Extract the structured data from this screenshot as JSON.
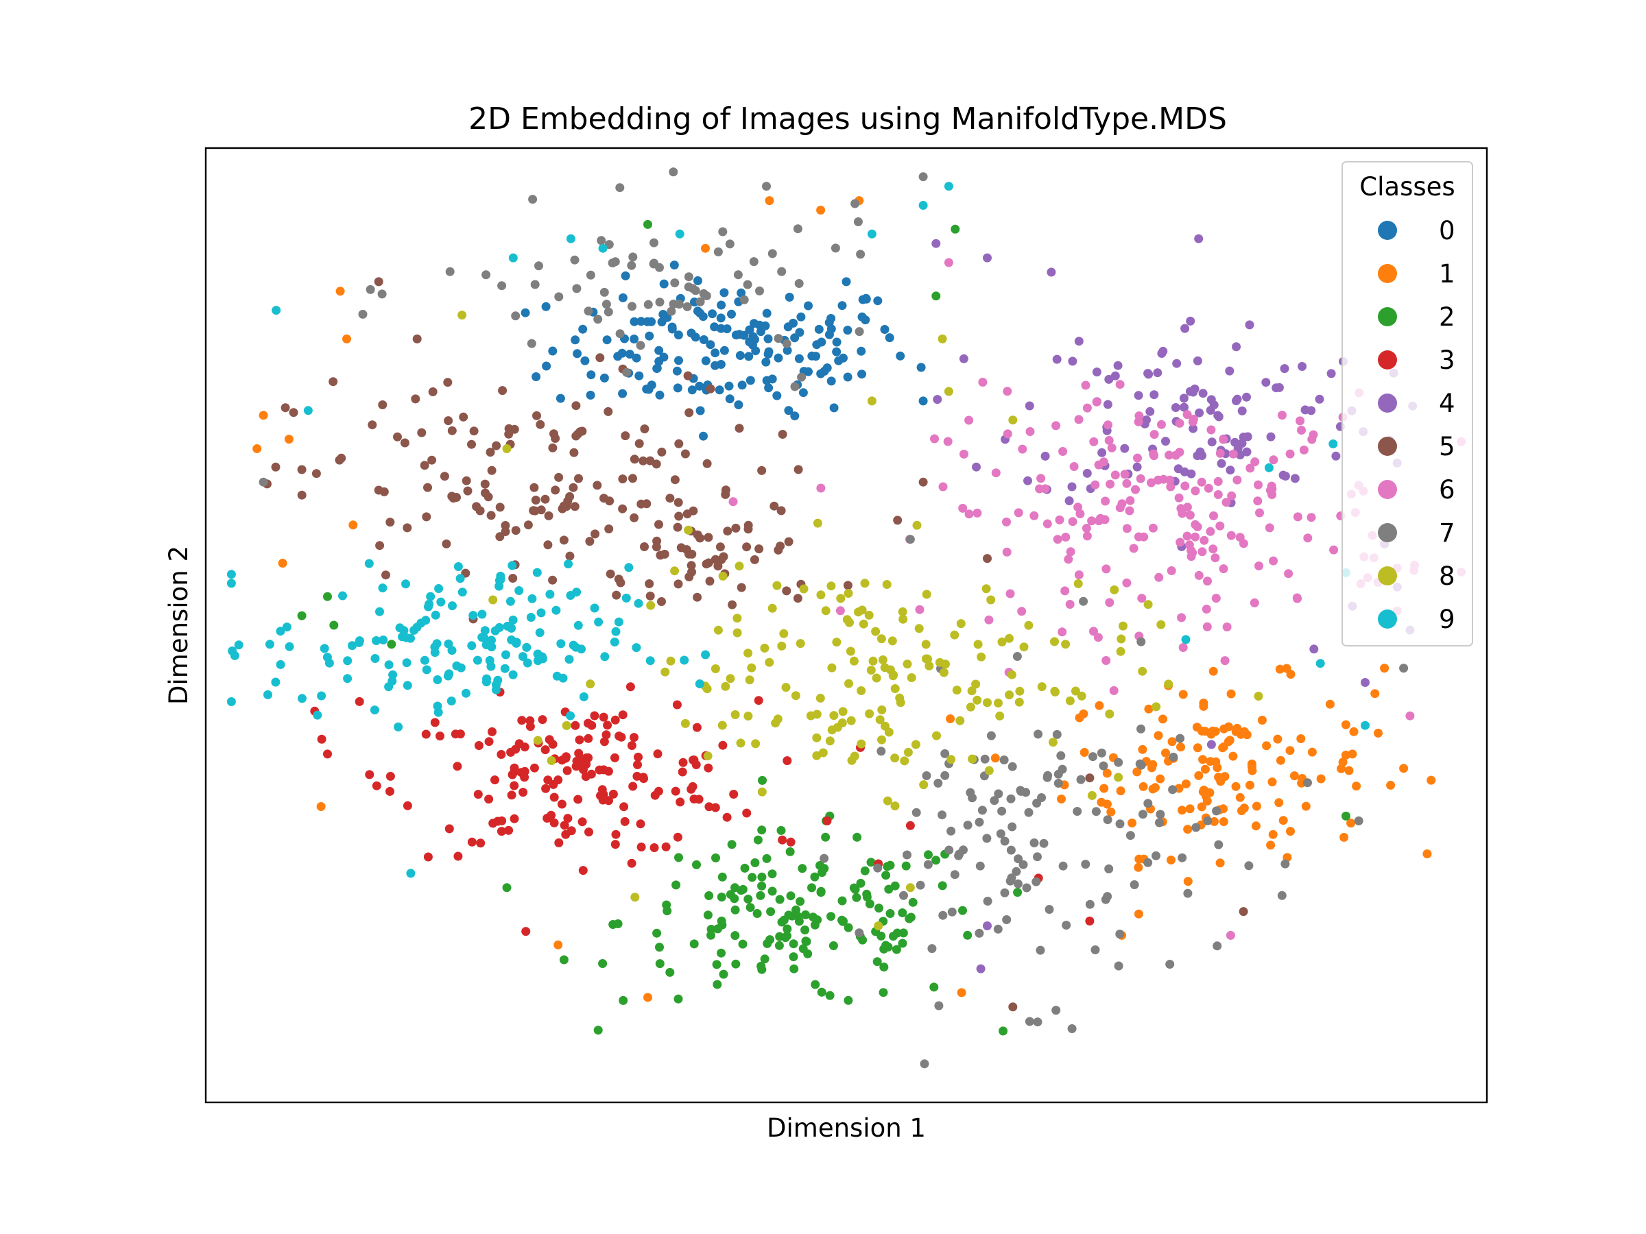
{
  "chart_data": {
    "type": "scatter",
    "title": "2D Embedding of Images using ManifoldType.MDS",
    "xlabel": "Dimension 1",
    "ylabel": "Dimension 2",
    "xlim": [
      -1.0,
      1.0
    ],
    "ylim": [
      -1.0,
      1.0
    ],
    "x_ticks": "none",
    "y_ticks": "none",
    "grid": false,
    "legend": {
      "title": "Classes",
      "placement": "top-right",
      "entries": [
        "0",
        "1",
        "2",
        "3",
        "4",
        "5",
        "6",
        "7",
        "8",
        "9"
      ]
    },
    "series": [
      {
        "name": "0",
        "color": "#1f77b4",
        "clusters": [
          {
            "cx": -0.18,
            "cy": 0.58,
            "sx": 0.14,
            "sy": 0.07,
            "n": 160
          }
        ],
        "points": [
          [
            -0.09,
            0.45
          ],
          [
            0.12,
            0.47
          ],
          [
            0.0,
            0.72
          ],
          [
            -0.35,
            0.57
          ],
          [
            0.06,
            0.62
          ]
        ]
      },
      {
        "name": "1",
        "color": "#ff7f0e",
        "clusters": [
          {
            "cx": 0.58,
            "cy": -0.3,
            "sx": 0.12,
            "sy": 0.09,
            "n": 140
          }
        ],
        "points": [
          [
            -0.91,
            0.44
          ],
          [
            -0.87,
            0.39
          ],
          [
            -0.92,
            0.37
          ],
          [
            -0.79,
            0.7
          ],
          [
            -0.78,
            0.6
          ],
          [
            -0.88,
            0.13
          ],
          [
            -0.82,
            -0.38
          ],
          [
            -0.77,
            0.21
          ],
          [
            -0.45,
            -0.67
          ],
          [
            -0.31,
            -0.78
          ],
          [
            -0.22,
            0.79
          ],
          [
            -0.12,
            0.89
          ],
          [
            -0.04,
            0.87
          ],
          [
            0.02,
            0.89
          ],
          [
            0.18,
            -0.77
          ],
          [
            0.43,
            -0.65
          ],
          [
            0.87,
            -0.3
          ],
          [
            0.79,
            -0.27
          ],
          [
            0.84,
            -0.09
          ]
        ]
      },
      {
        "name": "2",
        "color": "#2ca02c",
        "clusters": [
          {
            "cx": -0.07,
            "cy": -0.62,
            "sx": 0.14,
            "sy": 0.09,
            "n": 160
          }
        ],
        "points": [
          [
            -0.81,
            0.06
          ],
          [
            -0.8,
            0.0
          ],
          [
            -0.85,
            0.02
          ],
          [
            -0.71,
            -0.04
          ],
          [
            -0.53,
            -0.55
          ],
          [
            -0.31,
            0.84
          ],
          [
            0.17,
            0.83
          ],
          [
            0.14,
            0.69
          ],
          [
            0.78,
            -0.4
          ]
        ]
      },
      {
        "name": "3",
        "color": "#d62728",
        "clusters": [
          {
            "cx": -0.42,
            "cy": -0.32,
            "sx": 0.14,
            "sy": 0.08,
            "n": 160
          }
        ],
        "points": [
          [
            -0.83,
            -0.18
          ],
          [
            -0.81,
            -0.27
          ],
          [
            -0.76,
            -0.16
          ],
          [
            0.05,
            -0.5
          ],
          [
            0.1,
            -0.42
          ],
          [
            0.3,
            -0.53
          ],
          [
            0.38,
            -0.62
          ],
          [
            -0.1,
            -0.45
          ],
          [
            -0.03,
            -0.41
          ]
        ]
      },
      {
        "name": "4",
        "color": "#9467bd",
        "clusters": [
          {
            "cx": 0.55,
            "cy": 0.45,
            "sx": 0.14,
            "sy": 0.1,
            "n": 110
          }
        ],
        "points": [
          [
            0.86,
            0.34
          ],
          [
            0.84,
            0.17
          ],
          [
            0.73,
            -0.05
          ],
          [
            0.79,
            0.04
          ],
          [
            0.81,
            -0.12
          ],
          [
            0.86,
            0.08
          ],
          [
            0.88,
            -0.01
          ],
          [
            0.57,
            -0.25
          ],
          [
            0.14,
            0.8
          ],
          [
            0.22,
            0.77
          ],
          [
            0.32,
            0.74
          ],
          [
            0.21,
            -0.72
          ],
          [
            0.22,
            -0.63
          ],
          [
            0.55,
            0.81
          ]
        ]
      },
      {
        "name": "5",
        "color": "#8c564b",
        "clusters": [
          {
            "cx": -0.5,
            "cy": 0.28,
            "sx": 0.18,
            "sy": 0.12,
            "n": 150
          },
          {
            "cx": -0.18,
            "cy": 0.14,
            "sx": 0.08,
            "sy": 0.06,
            "n": 40
          }
        ],
        "points": [
          [
            -0.67,
            0.6
          ],
          [
            -0.73,
            0.72
          ],
          [
            -0.74,
            0.42
          ],
          [
            0.12,
            0.3
          ],
          [
            0.08,
            0.22
          ],
          [
            0.22,
            0.14
          ],
          [
            0.62,
            -0.6
          ],
          [
            0.38,
            -0.32
          ],
          [
            0.26,
            -0.8
          ]
        ]
      },
      {
        "name": "6",
        "color": "#e377c2",
        "clusters": [
          {
            "cx": 0.5,
            "cy": 0.24,
            "sx": 0.18,
            "sy": 0.12,
            "n": 200
          }
        ],
        "points": [
          [
            0.86,
            0.12
          ],
          [
            0.88,
            -0.19
          ],
          [
            0.83,
            0.09
          ],
          [
            0.86,
            0.03
          ],
          [
            0.6,
            -0.65
          ],
          [
            0.33,
            0.18
          ],
          [
            0.16,
            0.76
          ]
        ]
      },
      {
        "name": "7",
        "color": "#7f7f7f",
        "clusters": [
          {
            "cx": 0.3,
            "cy": -0.45,
            "sx": 0.14,
            "sy": 0.16,
            "n": 130
          },
          {
            "cx": -0.28,
            "cy": 0.7,
            "sx": 0.18,
            "sy": 0.08,
            "n": 70
          }
        ],
        "points": [
          [
            -0.27,
            0.95
          ],
          [
            0.12,
            0.94
          ],
          [
            -0.91,
            0.3
          ],
          [
            0.87,
            -0.09
          ],
          [
            0.8,
            -0.41
          ],
          [
            0.72,
            -0.33
          ],
          [
            -0.07,
            0.52
          ],
          [
            0.1,
            0.18
          ],
          [
            0.37,
            0.05
          ]
        ]
      },
      {
        "name": "8",
        "color": "#bcbd22",
        "clusters": [
          {
            "cx": 0.05,
            "cy": -0.1,
            "sx": 0.2,
            "sy": 0.12,
            "n": 170
          }
        ],
        "points": [
          [
            -0.53,
            0.37
          ],
          [
            -0.6,
            0.65
          ],
          [
            0.04,
            0.47
          ],
          [
            0.16,
            0.49
          ],
          [
            0.26,
            0.43
          ],
          [
            0.15,
            0.6
          ],
          [
            -0.33,
            -0.57
          ],
          [
            0.05,
            -0.63
          ],
          [
            0.1,
            -0.55
          ]
        ]
      },
      {
        "name": "9",
        "color": "#17becf",
        "clusters": [
          {
            "cx": -0.62,
            "cy": -0.04,
            "sx": 0.14,
            "sy": 0.08,
            "n": 150
          }
        ],
        "points": [
          [
            -0.89,
            0.66
          ],
          [
            -0.84,
            0.45
          ],
          [
            -0.9,
            -0.04
          ],
          [
            -0.68,
            -0.52
          ],
          [
            -0.43,
            0.81
          ],
          [
            -0.52,
            0.77
          ],
          [
            -0.38,
            0.79
          ],
          [
            -0.26,
            0.82
          ],
          [
            0.12,
            0.88
          ],
          [
            0.04,
            0.82
          ],
          [
            0.16,
            0.92
          ],
          [
            0.66,
            0.33
          ],
          [
            0.81,
            -0.21
          ],
          [
            0.74,
            -0.08
          ],
          [
            0.78,
            0.11
          ],
          [
            0.53,
            -0.03
          ],
          [
            0.76,
            0.38
          ]
        ]
      }
    ]
  }
}
